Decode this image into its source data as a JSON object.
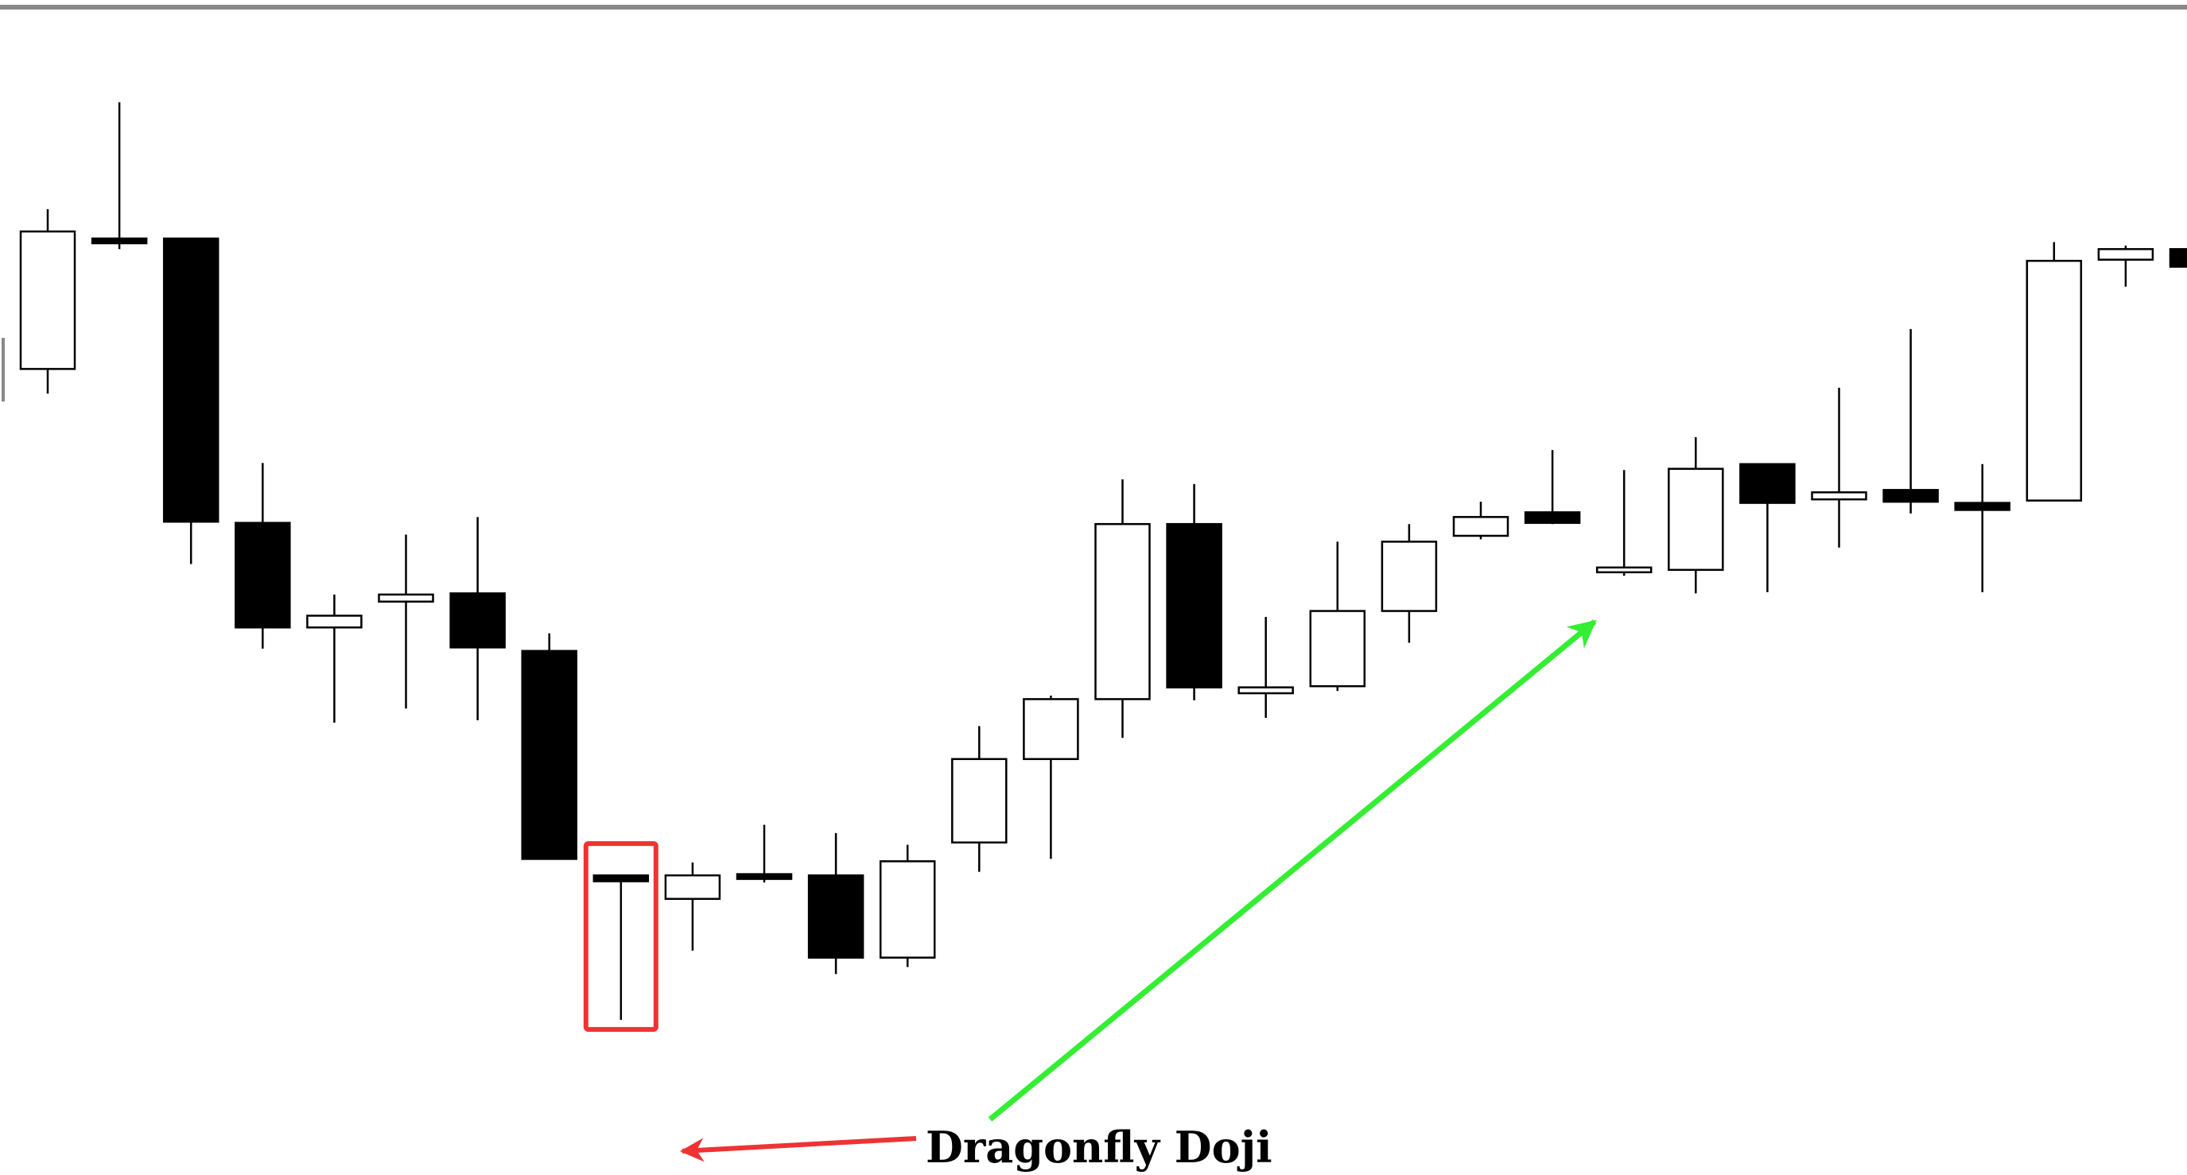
{
  "chart_data": {
    "type": "candlestick",
    "title": "",
    "xlabel": "",
    "ylabel": "",
    "grid": false,
    "legend": "none",
    "ylim": [
      0,
      100
    ],
    "candles": [
      {
        "open": 68.6,
        "high": 82.2,
        "low": 66.5,
        "close": 80.3
      },
      {
        "open": 79.7,
        "high": 91.3,
        "low": 78.8,
        "close": 79.3
      },
      {
        "open": 79.7,
        "high": 79.7,
        "low": 52.0,
        "close": 55.6
      },
      {
        "open": 55.5,
        "high": 60.6,
        "low": 44.8,
        "close": 46.6
      },
      {
        "open": 46.6,
        "high": 49.4,
        "low": 38.5,
        "close": 47.6
      },
      {
        "open": 48.8,
        "high": 54.5,
        "low": 39.7,
        "close": 49.4
      },
      {
        "open": 49.5,
        "high": 56.0,
        "low": 38.7,
        "close": 44.9
      },
      {
        "open": 44.6,
        "high": 46.1,
        "low": 26.9,
        "close": 26.9
      },
      {
        "open": 25.5,
        "high": 25.5,
        "low": 13.2,
        "close": 25.0
      },
      {
        "open": 23.5,
        "high": 26.6,
        "low": 19.1,
        "close": 25.5
      },
      {
        "open": 25.5,
        "high": 29.8,
        "low": 24.9,
        "close": 25.3
      },
      {
        "open": 25.5,
        "high": 29.1,
        "low": 17.1,
        "close": 18.5
      },
      {
        "open": 18.5,
        "high": 28.1,
        "low": 17.7,
        "close": 26.7
      },
      {
        "open": 28.3,
        "high": 38.2,
        "low": 25.8,
        "close": 35.4
      },
      {
        "open": 35.4,
        "high": 40.8,
        "low": 26.9,
        "close": 40.5
      },
      {
        "open": 40.5,
        "high": 59.2,
        "low": 37.2,
        "close": 55.4
      },
      {
        "open": 55.4,
        "high": 58.8,
        "low": 40.4,
        "close": 41.5
      },
      {
        "open": 41.0,
        "high": 47.5,
        "low": 38.9,
        "close": 41.5
      },
      {
        "open": 41.6,
        "high": 53.9,
        "low": 41.2,
        "close": 48.0
      },
      {
        "open": 48.0,
        "high": 55.4,
        "low": 45.3,
        "close": 53.9
      },
      {
        "open": 54.4,
        "high": 57.3,
        "low": 54.1,
        "close": 56.0
      },
      {
        "open": 56.4,
        "high": 61.7,
        "low": 55.4,
        "close": 55.5
      },
      {
        "open": 51.5,
        "high": 60.0,
        "low": 51.0,
        "close": 51.5
      },
      {
        "open": 51.5,
        "high": 62.8,
        "low": 49.5,
        "close": 60.1
      },
      {
        "open": 60.5,
        "high": 60.5,
        "low": 49.6,
        "close": 57.2
      },
      {
        "open": 57.5,
        "high": 67.0,
        "low": 53.4,
        "close": 58.1
      },
      {
        "open": 58.3,
        "high": 72.0,
        "low": 56.3,
        "close": 57.3
      },
      {
        "open": 57.2,
        "high": 60.5,
        "low": 49.6,
        "close": 56.6
      },
      {
        "open": 57.4,
        "high": 79.4,
        "low": 57.4,
        "close": 77.8
      },
      {
        "open": 77.9,
        "high": 79.1,
        "low": 75.6,
        "close": 78.8
      },
      {
        "open": 78.8,
        "high": 78.8,
        "low": 77.3,
        "close": 77.3
      }
    ],
    "annotations": [
      {
        "text": "Dragonfly Doji",
        "target_candle_index": 8,
        "color": "#ee3333"
      },
      {
        "text": "",
        "type": "trend-arrow",
        "from_candle_index": 13,
        "to_candle_index": 22,
        "color": "#33ee33"
      }
    ],
    "colors": {
      "bullish_fill": "#ffffff",
      "bearish_fill": "#000000",
      "outline": "#000000",
      "highlight_box": "#ee3333",
      "pointer_arrow": "#ee3333",
      "trend_arrow": "#33ee33",
      "top_rule": "#888888"
    }
  }
}
